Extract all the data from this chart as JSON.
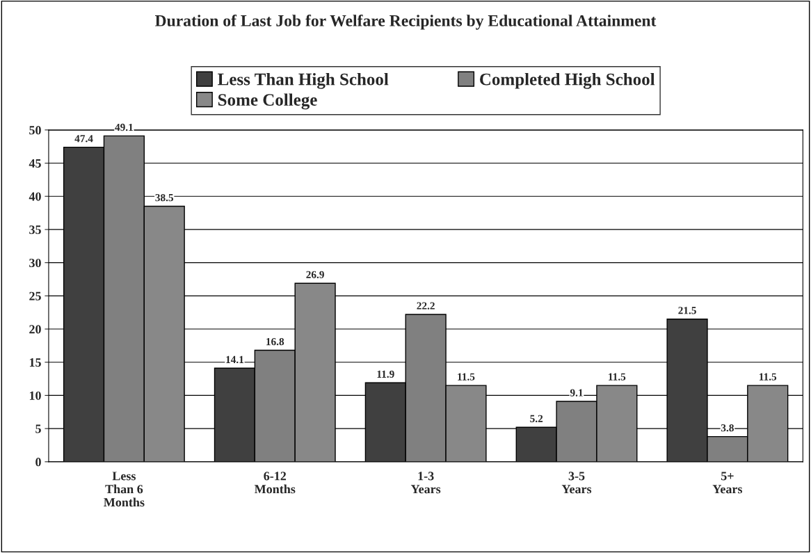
{
  "chart_data": {
    "type": "bar",
    "title": "Duration of Last Job for Welfare Recipients by Educational Attainment",
    "categories": [
      "Less\nThan 6\nMonths",
      "6-12\nMonths",
      "1-3\nYears",
      "3-5\nYears",
      "5+\nYears"
    ],
    "series": [
      {
        "name": "Less Than High School",
        "color": "#404040",
        "values": [
          47.4,
          14.1,
          11.9,
          5.2,
          21.5
        ]
      },
      {
        "name": "Completed High School",
        "color": "#808080",
        "values": [
          49.1,
          16.8,
          22.2,
          9.1,
          3.8
        ]
      },
      {
        "name": "Some College",
        "color": "#888888",
        "values": [
          38.5,
          26.9,
          11.5,
          11.5,
          11.5
        ]
      }
    ],
    "ylim": [
      0,
      50
    ],
    "yticks": [
      0,
      5,
      10,
      15,
      20,
      25,
      30,
      35,
      40,
      45,
      50
    ],
    "grid": "y",
    "legend": "top",
    "data_labels": true
  }
}
